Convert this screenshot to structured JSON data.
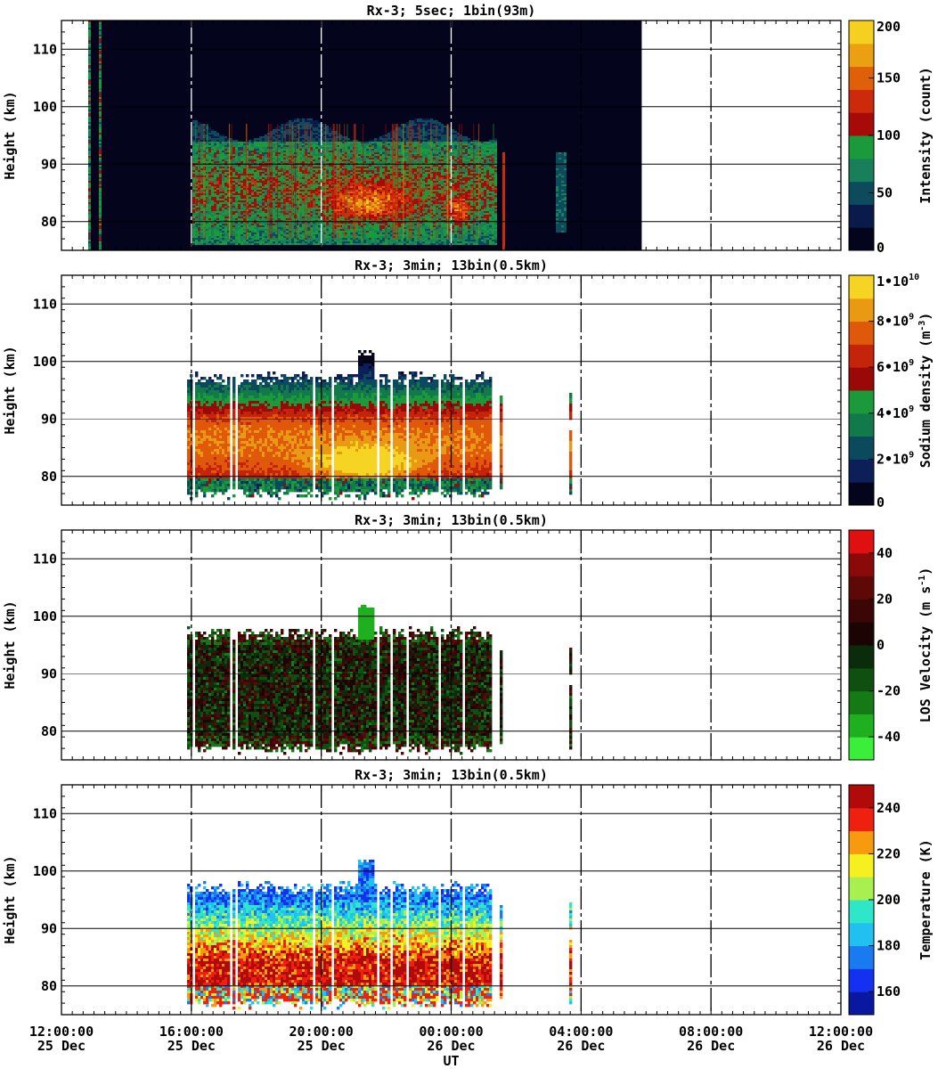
{
  "figure": {
    "x_label": "UT",
    "x_ticks": [
      {
        "time": "12:00:00",
        "date": "25 Dec"
      },
      {
        "time": "16:00:00",
        "date": "25 Dec"
      },
      {
        "time": "20:00:00",
        "date": "25 Dec"
      },
      {
        "time": "00:00:00",
        "date": "26 Dec"
      },
      {
        "time": "04:00:00",
        "date": "26 Dec"
      },
      {
        "time": "08:00:00",
        "date": "26 Dec"
      },
      {
        "time": "12:00:00",
        "date": "26 Dec"
      }
    ]
  },
  "chart_data": [
    {
      "type": "heatmap",
      "title": "Rx-3;  5sec; 1bin(93m)",
      "xlabel": "UT",
      "ylabel": "Height (km)",
      "xlim": [
        "2025-12-25 12:00",
        "2025-12-26 12:00"
      ],
      "ylim": [
        75,
        115
      ],
      "yticks": [
        80,
        90,
        100,
        110
      ],
      "data_time_range": [
        "25 Dec 12:45",
        "26 Dec 05:50"
      ],
      "colorbar": {
        "label": "Intensity (count)",
        "min": 0,
        "max": 200,
        "ticks": [
          "0",
          "50",
          "100",
          "150",
          "200"
        ],
        "colors": [
          "#04041c",
          "#0a1a4a",
          "#0c4a5c",
          "#17805a",
          "#1a9a3a",
          "#a80a0a",
          "#cc2a0a",
          "#e0600a",
          "#eaa010",
          "#f6d020"
        ]
      },
      "layers": [
        {
          "feature": "sodium layer, moderate",
          "time_from": "16:00",
          "time_to": "01:20",
          "height_from": 77,
          "height_to": 98,
          "intensity": 70
        },
        {
          "feature": "sodium layer peak",
          "time_from": "20:30",
          "time_to": "22:30",
          "height_from": 80,
          "height_to": 86,
          "intensity": 120
        }
      ]
    },
    {
      "type": "heatmap",
      "title": "Rx-3; 3min; 13bin(0.5km)",
      "xlabel": "UT",
      "ylabel": "Height (km)",
      "xlim": [
        "2025-12-25 12:00",
        "2025-12-26 12:00"
      ],
      "ylim": [
        75,
        115
      ],
      "yticks": [
        80,
        90,
        100,
        110
      ],
      "data_time_range": [
        "25 Dec 15:50",
        "26 Dec 03:40"
      ],
      "colorbar": {
        "label": "Sodium density (m^-3)",
        "min": 0,
        "max": 10000000000,
        "ticks": [
          "0",
          "2•10^9",
          "4•10^9",
          "6•10^9",
          "8•10^9",
          "1•10^10"
        ],
        "colors": [
          "#04041c",
          "#0c1f58",
          "#0b4a5c",
          "#127a4a",
          "#1a9a3a",
          "#9a0808",
          "#c4240a",
          "#e0580a",
          "#ea9a12",
          "#f6d424"
        ]
      },
      "layers": [
        {
          "feature": "layer top",
          "height_km": 97
        },
        {
          "feature": "layer bottom",
          "height_km": 77
        },
        {
          "feature": "density peak",
          "time_from": "20:30",
          "time_to": "22:00",
          "height_from": 80,
          "height_to": 84,
          "value": 9500000000
        }
      ]
    },
    {
      "type": "heatmap",
      "title": "Rx-3; 3min; 13bin(0.5km)",
      "xlabel": "UT",
      "ylabel": "Height (km)",
      "xlim": [
        "2025-12-25 12:00",
        "2025-12-26 12:00"
      ],
      "ylim": [
        75,
        115
      ],
      "yticks": [
        80,
        90,
        100,
        110
      ],
      "data_time_range": [
        "25 Dec 15:50",
        "26 Dec 03:40"
      ],
      "colorbar": {
        "label": "LOS Velocity (m s^-1)",
        "min": -50,
        "max": 50,
        "ticks": [
          "-40",
          "-20",
          "0",
          "20",
          "40"
        ],
        "colors": [
          "#3aee3a",
          "#1eb01e",
          "#157a15",
          "#0f4f10",
          "#0a2c0a",
          "#1c0404",
          "#3c0606",
          "#5e0808",
          "#8a0a0a",
          "#e01010"
        ]
      }
    },
    {
      "type": "heatmap",
      "title": "Rx-3; 3min; 13bin(0.5km)",
      "xlabel": "UT",
      "ylabel": "Height (km)",
      "xlim": [
        "2025-12-25 12:00",
        "2025-12-26 12:00"
      ],
      "ylim": [
        75,
        115
      ],
      "yticks": [
        80,
        90,
        100,
        110
      ],
      "data_time_range": [
        "25 Dec 15:50",
        "26 Dec 03:40"
      ],
      "colorbar": {
        "label": "Temperature (K)",
        "min": 150,
        "max": 250,
        "ticks": [
          "160",
          "180",
          "200",
          "220",
          "240"
        ],
        "colors": [
          "#0a18a0",
          "#1430f0",
          "#1a7af0",
          "#20c0f0",
          "#30e6c8",
          "#a8f050",
          "#f6f020",
          "#f89a10",
          "#f02010",
          "#b00a0a"
        ]
      },
      "layers": [
        {
          "feature": "cool region",
          "height_from": 92,
          "height_to": 98,
          "temperature": 185
        },
        {
          "feature": "warm region",
          "height_from": 78,
          "height_to": 88,
          "temperature": 240
        }
      ]
    }
  ]
}
